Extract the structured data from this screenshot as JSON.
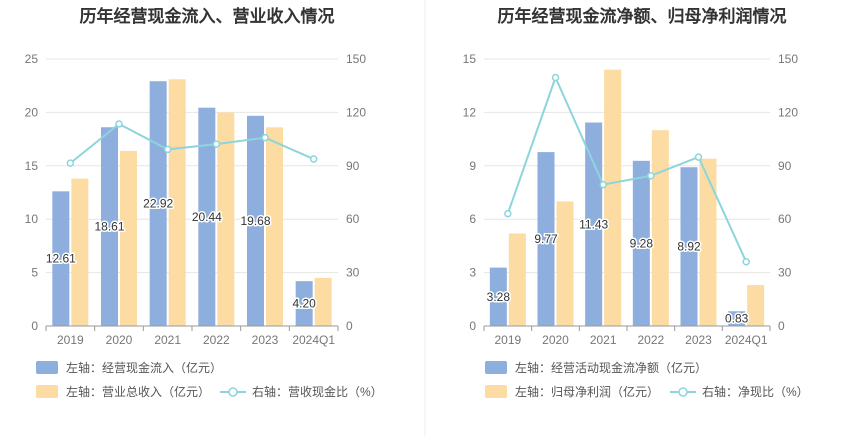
{
  "chart_data": [
    {
      "type": "bar",
      "title": "历年经营现金流入、营业收入情况",
      "categories": [
        "2019",
        "2020",
        "2021",
        "2022",
        "2023",
        "2024Q1"
      ],
      "left_axis": {
        "ticks": [
          "0",
          "5",
          "10",
          "15",
          "20",
          "25"
        ],
        "ylim": [
          0,
          25
        ]
      },
      "right_axis": {
        "ticks": [
          "0",
          "30",
          "60",
          "90",
          "120",
          "150"
        ],
        "ylim": [
          0,
          150
        ]
      },
      "series": [
        {
          "name": "左轴：经营现金流入（亿元）",
          "kind": "bar",
          "axis": "left",
          "color": "#8eaedd",
          "values": [
            12.61,
            18.61,
            22.92,
            20.44,
            19.68,
            4.2
          ],
          "labels": [
            "12.61",
            "18.61",
            "22.92",
            "20.44",
            "19.68",
            "4.20"
          ]
        },
        {
          "name": "左轴：营业总收入（亿元）",
          "kind": "bar",
          "axis": "left",
          "color": "#fcdca3",
          "values": [
            13.8,
            16.4,
            23.1,
            20.0,
            18.6,
            4.5
          ]
        },
        {
          "name": "右轴：营收现金比（%）",
          "kind": "line",
          "axis": "right",
          "color": "#8dd5dc",
          "values": [
            91.5,
            113.5,
            99.2,
            102.2,
            105.8,
            93.8
          ]
        }
      ],
      "legend_position": "bottom-left",
      "grid": true
    },
    {
      "type": "bar",
      "title": "历年经营现金流净额、归母净利润情况",
      "categories": [
        "2019",
        "2020",
        "2021",
        "2022",
        "2023",
        "2024Q1"
      ],
      "left_axis": {
        "ticks": [
          "0",
          "3",
          "6",
          "9",
          "12",
          "15"
        ],
        "ylim": [
          0,
          15
        ]
      },
      "right_axis": {
        "ticks": [
          "0",
          "30",
          "60",
          "90",
          "120",
          "150"
        ],
        "ylim": [
          0,
          150
        ]
      },
      "series": [
        {
          "name": "左轴：经营活动现金流净额（亿元）",
          "kind": "bar",
          "axis": "left",
          "color": "#8eaedd",
          "values": [
            3.28,
            9.77,
            11.43,
            9.28,
            8.92,
            0.83
          ],
          "labels": [
            "3.28",
            "9.77",
            "11.43",
            "9.28",
            "8.92",
            "0.83"
          ]
        },
        {
          "name": "左轴：归母净利润（亿元）",
          "kind": "bar",
          "axis": "left",
          "color": "#fcdca3",
          "values": [
            5.2,
            7.0,
            14.4,
            11.0,
            9.4,
            2.3
          ]
        },
        {
          "name": "右轴：净现比（%）",
          "kind": "line",
          "axis": "right",
          "color": "#8dd5dc",
          "values": [
            63.1,
            139.6,
            79.4,
            84.4,
            94.9,
            36.1
          ]
        }
      ],
      "legend_position": "bottom-left",
      "grid": true
    }
  ]
}
